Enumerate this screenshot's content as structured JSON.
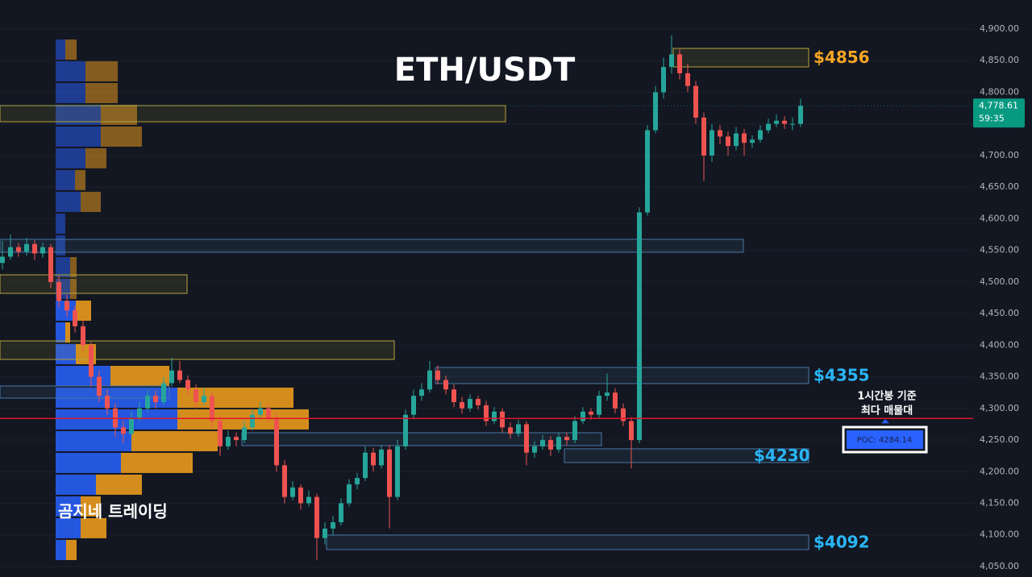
{
  "chart_data": {
    "type": "candlestick",
    "title": "ETH/USDT",
    "watermark": "곰지네 트레이딩",
    "ylim": [
      4033.4,
      4945.9
    ],
    "yticks": [
      {
        "value": 4050,
        "label": "4,050.00"
      },
      {
        "value": 4100,
        "label": "4,100.00"
      },
      {
        "value": 4150,
        "label": "4,150.00"
      },
      {
        "value": 4200,
        "label": "4,200.00"
      },
      {
        "value": 4250,
        "label": "4,250.00"
      },
      {
        "value": 4300,
        "label": "4,300.00"
      },
      {
        "value": 4350,
        "label": "4,350.00"
      },
      {
        "value": 4400,
        "label": "4,400.00"
      },
      {
        "value": 4450,
        "label": "4,450.00"
      },
      {
        "value": 4500,
        "label": "4,500.00"
      },
      {
        "value": 4550,
        "label": "4,550.00"
      },
      {
        "value": 4600,
        "label": "4,600.00"
      },
      {
        "value": 4650,
        "label": "4,650.00"
      },
      {
        "value": 4700,
        "label": "4,700.00"
      },
      {
        "value": 4750,
        "label": "4,750.00"
      },
      {
        "value": 4800,
        "label": "4,800.00"
      },
      {
        "value": 4850,
        "label": "4,850.00"
      },
      {
        "value": 4900,
        "label": "4,900.00"
      }
    ],
    "grid": true,
    "up_color": "#26a69a",
    "down_color": "#ef5350",
    "ohlc": [
      [
        4530,
        4565,
        4520,
        4540
      ],
      [
        4540,
        4575,
        4535,
        4555
      ],
      [
        4555,
        4562,
        4540,
        4548
      ],
      [
        4548,
        4570,
        4542,
        4560
      ],
      [
        4560,
        4566,
        4535,
        4545
      ],
      [
        4545,
        4562,
        4538,
        4555
      ],
      [
        4555,
        4560,
        4490,
        4500
      ],
      [
        4500,
        4510,
        4460,
        4470
      ],
      [
        4470,
        4480,
        4445,
        4455
      ],
      [
        4455,
        4462,
        4420,
        4430
      ],
      [
        4430,
        4440,
        4390,
        4400
      ],
      [
        4400,
        4405,
        4335,
        4350
      ],
      [
        4350,
        4360,
        4310,
        4320
      ],
      [
        4320,
        4330,
        4290,
        4300
      ],
      [
        4300,
        4308,
        4255,
        4270
      ],
      [
        4270,
        4280,
        4245,
        4260
      ],
      [
        4260,
        4295,
        4255,
        4285
      ],
      [
        4285,
        4310,
        4280,
        4300
      ],
      [
        4300,
        4330,
        4295,
        4320
      ],
      [
        4320,
        4328,
        4300,
        4310
      ],
      [
        4310,
        4350,
        4305,
        4340
      ],
      [
        4340,
        4380,
        4335,
        4360
      ],
      [
        4360,
        4375,
        4340,
        4345
      ],
      [
        4345,
        4352,
        4322,
        4330
      ],
      [
        4330,
        4338,
        4300,
        4310
      ],
      [
        4310,
        4332,
        4305,
        4320
      ],
      [
        4320,
        4325,
        4270,
        4280
      ],
      [
        4280,
        4288,
        4225,
        4240
      ],
      [
        4240,
        4265,
        4235,
        4255
      ],
      [
        4255,
        4262,
        4240,
        4250
      ],
      [
        4250,
        4280,
        4245,
        4270
      ],
      [
        4270,
        4298,
        4265,
        4290
      ],
      [
        4290,
        4310,
        4285,
        4300
      ],
      [
        4300,
        4308,
        4278,
        4285
      ],
      [
        4285,
        4292,
        4200,
        4210
      ],
      [
        4210,
        4218,
        4150,
        4160
      ],
      [
        4160,
        4185,
        4155,
        4175
      ],
      [
        4175,
        4180,
        4140,
        4150
      ],
      [
        4150,
        4170,
        4145,
        4160
      ],
      [
        4160,
        4165,
        4060,
        4095
      ],
      [
        4095,
        4120,
        4085,
        4110
      ],
      [
        4110,
        4130,
        4100,
        4120
      ],
      [
        4120,
        4158,
        4115,
        4150
      ],
      [
        4150,
        4188,
        4145,
        4180
      ],
      [
        4180,
        4198,
        4172,
        4190
      ],
      [
        4190,
        4240,
        4185,
        4230
      ],
      [
        4230,
        4238,
        4200,
        4210
      ],
      [
        4210,
        4242,
        4205,
        4235
      ],
      [
        4235,
        4242,
        4110,
        4160
      ],
      [
        4160,
        4250,
        4155,
        4240
      ],
      [
        4240,
        4298,
        4235,
        4290
      ],
      [
        4290,
        4330,
        4285,
        4320
      ],
      [
        4320,
        4340,
        4312,
        4330
      ],
      [
        4330,
        4375,
        4325,
        4360
      ],
      [
        4360,
        4368,
        4338,
        4345
      ],
      [
        4345,
        4352,
        4322,
        4330
      ],
      [
        4330,
        4338,
        4302,
        4310
      ],
      [
        4310,
        4318,
        4292,
        4300
      ],
      [
        4300,
        4322,
        4295,
        4315
      ],
      [
        4315,
        4320,
        4298,
        4305
      ],
      [
        4305,
        4312,
        4272,
        4280
      ],
      [
        4280,
        4302,
        4275,
        4295
      ],
      [
        4295,
        4300,
        4262,
        4270
      ],
      [
        4270,
        4278,
        4252,
        4260
      ],
      [
        4260,
        4282,
        4255,
        4275
      ],
      [
        4275,
        4280,
        4210,
        4230
      ],
      [
        4230,
        4248,
        4222,
        4240
      ],
      [
        4240,
        4258,
        4235,
        4250
      ],
      [
        4250,
        4256,
        4225,
        4235
      ],
      [
        4235,
        4262,
        4230,
        4255
      ],
      [
        4255,
        4262,
        4242,
        4250
      ],
      [
        4250,
        4288,
        4245,
        4280
      ],
      [
        4280,
        4302,
        4275,
        4295
      ],
      [
        4295,
        4300,
        4282,
        4290
      ],
      [
        4290,
        4328,
        4285,
        4320
      ],
      [
        4320,
        4355,
        4312,
        4325
      ],
      [
        4325,
        4332,
        4292,
        4300
      ],
      [
        4300,
        4308,
        4272,
        4280
      ],
      [
        4280,
        4286,
        4205,
        4250
      ],
      [
        4250,
        4618,
        4245,
        4610
      ],
      [
        4610,
        4748,
        4605,
        4740
      ],
      [
        4740,
        4810,
        4735,
        4800
      ],
      [
        4800,
        4855,
        4790,
        4840
      ],
      [
        4840,
        4890,
        4830,
        4860
      ],
      [
        4860,
        4868,
        4820,
        4830
      ],
      [
        4830,
        4845,
        4800,
        4810
      ],
      [
        4810,
        4818,
        4750,
        4760
      ],
      [
        4760,
        4768,
        4660,
        4700
      ],
      [
        4700,
        4750,
        4690,
        4740
      ],
      [
        4740,
        4748,
        4718,
        4730
      ],
      [
        4730,
        4738,
        4700,
        4715
      ],
      [
        4715,
        4745,
        4708,
        4735
      ],
      [
        4735,
        4742,
        4700,
        4720
      ],
      [
        4720,
        4732,
        4712,
        4725
      ],
      [
        4725,
        4748,
        4720,
        4740
      ],
      [
        4740,
        4758,
        4735,
        4750
      ],
      [
        4750,
        4765,
        4745,
        4755
      ],
      [
        4755,
        4762,
        4742,
        4750
      ],
      [
        4750,
        4760,
        4740,
        4750
      ],
      [
        4750,
        4790,
        4745,
        4778.61
      ]
    ],
    "current_price_label": "4,778.61",
    "countdown": "59:35",
    "poc": {
      "value": 4284.14,
      "label": "POC: 4284.14"
    },
    "poc_note": [
      "1시간봉 기준",
      "최다 매물대"
    ],
    "zones": [
      {
        "top": 4778.9,
        "bottom": 4753.4,
        "color": "#b8a53a"
      },
      {
        "top": 4869.4,
        "bottom": 4840.1,
        "color": "#b8a53a",
        "label": "$4856",
        "label_color": "#f5a623"
      },
      {
        "top": 4567.4,
        "bottom": 4547.0,
        "color": "#4a78a8"
      },
      {
        "top": 4511.3,
        "bottom": 4482.0,
        "color": "#b8a53a"
      },
      {
        "top": 4406.8,
        "bottom": 4377.5,
        "color": "#b8a53a"
      },
      {
        "top": 4335.5,
        "bottom": 4316.3,
        "color": "#4a78a8"
      },
      {
        "top": 4364.8,
        "bottom": 4339.3,
        "color": "#4a78a8",
        "label": "$4355",
        "label_color": "#29b6f6"
      },
      {
        "top": 4261.5,
        "bottom": 4241.2,
        "color": "#4a78a8"
      },
      {
        "top": 4236.1,
        "bottom": 4214.4,
        "color": "#4a78a8",
        "label": "$4230",
        "label_color": "#29b6f6"
      },
      {
        "top": 4099.7,
        "bottom": 4076.8,
        "color": "#4a78a8",
        "label": "$4092",
        "label_color": "#29b6f6"
      }
    ],
    "volume_profile": {
      "bins": [
        4884.7,
        4850.3,
        4815.9,
        4781.5,
        4747.1,
        4712.7,
        4678.3,
        4643.9,
        4609.4,
        4575.0,
        4540.6,
        4506.2,
        4471.8,
        4437.4,
        4403.0,
        4368.6,
        4334.2,
        4299.8,
        4265.4,
        4231.0,
        4196.6,
        4162.2,
        4127.8,
        4093.4,
        4058.9
      ],
      "buy": [
        12,
        37,
        37,
        56,
        56,
        37,
        24,
        31,
        12,
        12,
        18,
        18,
        25,
        12,
        25,
        68,
        151,
        151,
        94,
        81,
        50,
        31,
        31,
        13
      ],
      "sell": [
        14,
        40,
        40,
        45,
        51,
        26,
        13,
        25,
        0,
        0,
        8,
        8,
        19,
        6,
        25,
        73,
        144,
        163,
        107,
        89,
        57,
        25,
        32,
        13
      ],
      "buy_color": "#2962ff",
      "sell_color": "#f7a21b"
    }
  }
}
